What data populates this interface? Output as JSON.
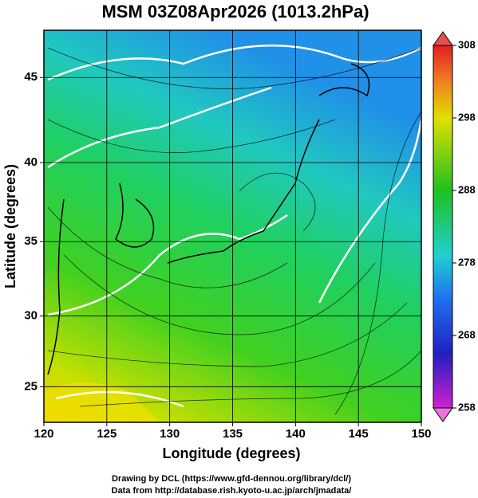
{
  "map": {
    "title": "MSM 03Z08Apr2026 (1013.2hPa)",
    "xlabel": "Longitude (degrees)",
    "ylabel": "Latitude  (degrees)",
    "projection": "mercator",
    "xlim": [
      120,
      150
    ],
    "ylim": [
      22.4,
      47.6
    ],
    "xticks": [
      120,
      125,
      130,
      135,
      140,
      145,
      150
    ],
    "yticks": [
      25,
      30,
      35,
      40,
      45
    ],
    "grid": true,
    "colorbar": {
      "lim": [
        258,
        308
      ],
      "ticks": [
        258,
        268,
        278,
        288,
        298,
        308
      ]
    },
    "footer": [
      "Drawing by DCL (https://www.gfd-dennou.org/library/dcl/)",
      "Data from http://database.rish.kyoto-u.ac.jp/arch/jmadata/"
    ]
  }
}
